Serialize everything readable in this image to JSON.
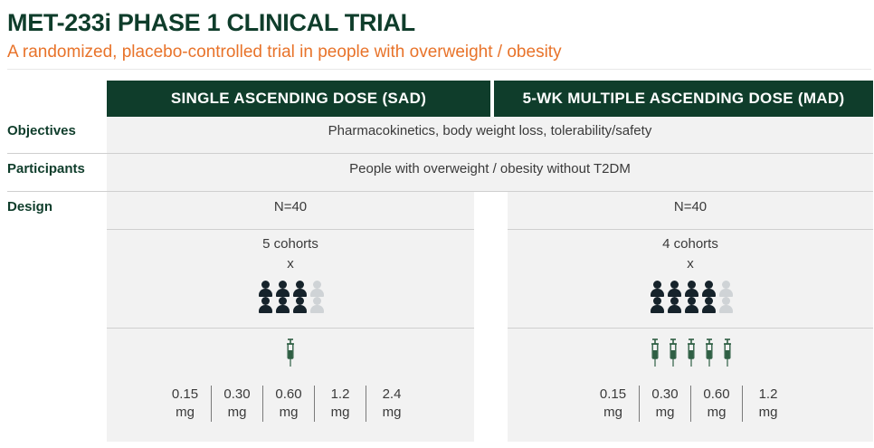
{
  "header": {
    "title": "MET-233i PHASE 1 CLINICAL TRIAL",
    "subtitle": "A randomized, placebo-controlled trial in people with overweight / obesity"
  },
  "columns": {
    "sad": "SINGLE ASCENDING DOSE (SAD)",
    "mad": "5-WK MULTIPLE ASCENDING DOSE (MAD)"
  },
  "rows": {
    "objectives": {
      "label": "Objectives",
      "value": "Pharmacokinetics, body weight loss, tolerability/safety"
    },
    "participants": {
      "label": "Participants",
      "value": "People with overweight / obesity without T2DM"
    },
    "design": {
      "label": "Design"
    }
  },
  "sad": {
    "n": "N=40",
    "cohorts": "5 cohorts",
    "times": "x",
    "people": {
      "active": 6,
      "placebo": 2
    },
    "injections": 1,
    "doses": [
      {
        "value": "0.15",
        "unit": "mg"
      },
      {
        "value": "0.30",
        "unit": "mg"
      },
      {
        "value": "0.60",
        "unit": "mg"
      },
      {
        "value": "1.2",
        "unit": "mg"
      },
      {
        "value": "2.4",
        "unit": "mg"
      }
    ]
  },
  "mad": {
    "n": "N=40",
    "cohorts": "4 cohorts",
    "times": "x",
    "people": {
      "active": 8,
      "placebo": 2
    },
    "injections": 5,
    "doses": [
      {
        "value": "0.15",
        "unit": "mg"
      },
      {
        "value": "0.30",
        "unit": "mg"
      },
      {
        "value": "0.60",
        "unit": "mg"
      },
      {
        "value": "1.2",
        "unit": "mg"
      }
    ]
  },
  "colors": {
    "brand_green": "#0f3d2b",
    "accent_orange": "#e8732a",
    "panel_grey": "#f2f2f2",
    "active_person": "#16232b",
    "placebo_person": "#cfd3d6",
    "syringe": "#2f5f44"
  },
  "icons": {
    "person": "person-icon",
    "syringe": "syringe-icon"
  }
}
